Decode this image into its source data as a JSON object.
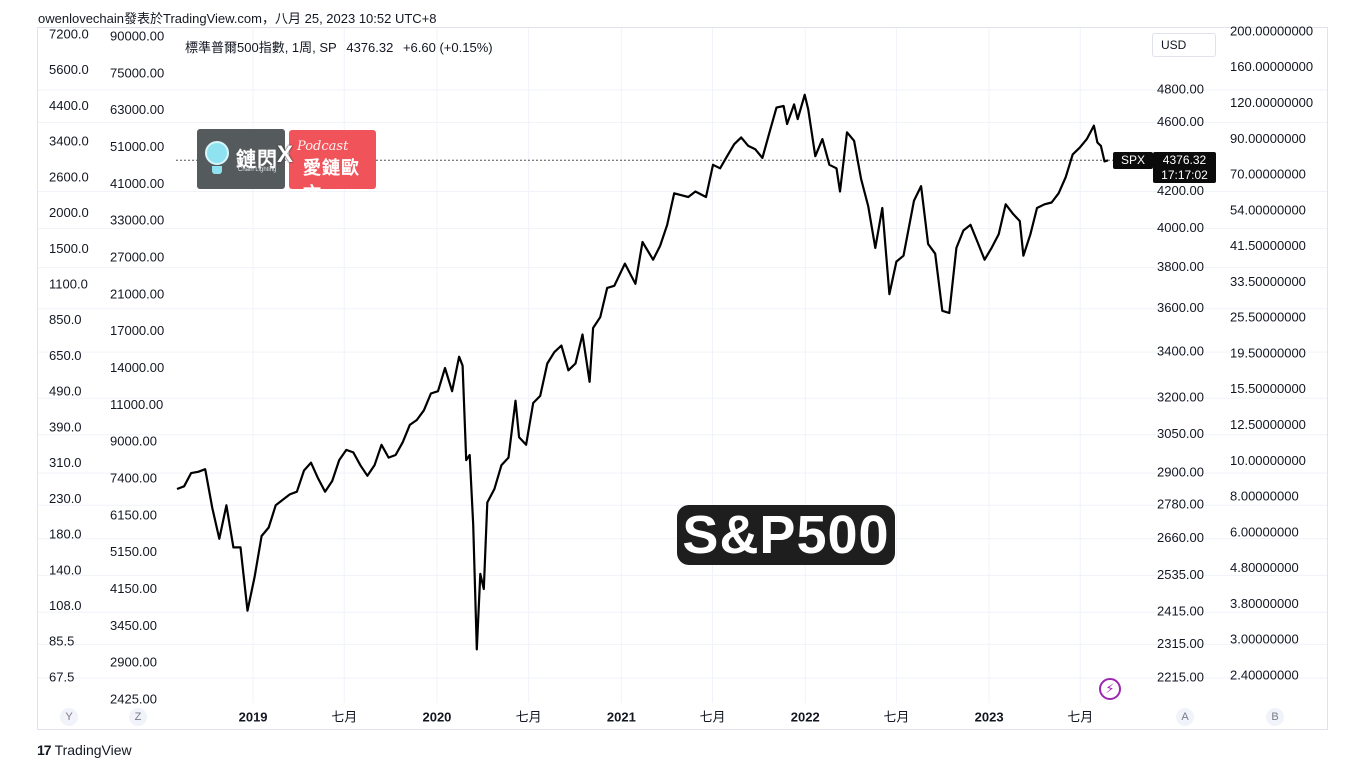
{
  "header": {
    "snapshot_info": "owenlovechain發表於TradingView.com，八月 25, 2023 10:52 UTC+8"
  },
  "legend": {
    "title": "標準普爾500指數, 1周, SP",
    "last": "4376.32",
    "change": "+6.60 (+0.15%)"
  },
  "currency_button": "USD",
  "price_tag": {
    "symbol": "SPX",
    "price": "4376.32",
    "countdown": "17:17:02"
  },
  "watermark": "S&P500",
  "logos": {
    "left_text": "鏈閃",
    "left_sub": "Chain Lighting",
    "x_mark": "X",
    "right_podcast": "Podcast",
    "right_name": "愛鏈歐文"
  },
  "axis_buttons": {
    "y": "Y",
    "z": "Z",
    "a": "A",
    "b": "B"
  },
  "footer_brand": "TradingView",
  "footer_logo": "17",
  "chart_data": {
    "type": "line",
    "title": "標準普爾500指數, 1周, SP",
    "xlabel": "",
    "ylabel": "",
    "log_scale": true,
    "x_tick_labels": [
      "2019",
      "七月",
      "2020",
      "七月",
      "2021",
      "七月",
      "2022",
      "七月",
      "2023",
      "七月"
    ],
    "y_range": [
      2180,
      5000
    ],
    "main_axis_ticks": [
      "4800.00",
      "4600.00",
      "4200.00",
      "4000.00",
      "3800.00",
      "3600.00",
      "3400.00",
      "3200.00",
      "3050.00",
      "2900.00",
      "2780.00",
      "2660.00",
      "2535.00",
      "2415.00",
      "2315.00",
      "2215.00"
    ],
    "left_axis_1_ticks": [
      "7200.0",
      "5600.0",
      "4400.0",
      "3400.0",
      "2600.0",
      "2000.0",
      "1500.0",
      "1100.0",
      "850.0",
      "650.0",
      "490.0",
      "390.0",
      "310.0",
      "230.0",
      "180.0",
      "140.0",
      "108.0",
      "85.5",
      "67.5"
    ],
    "left_axis_2_ticks": [
      "90000.00",
      "75000.00",
      "63000.00",
      "51000.00",
      "41000.00",
      "33000.00",
      "27000.00",
      "21000.00",
      "17000.00",
      "14000.00",
      "11000.00",
      "9000.00",
      "7400.00",
      "6150.00",
      "5150.00",
      "4150.00",
      "3450.00",
      "2900.00",
      "2425.00"
    ],
    "right_axis_2_ticks": [
      "200.00000000",
      "160.00000000",
      "120.00000000",
      "90.00000000",
      "70.00000000",
      "54.00000000",
      "41.50000000",
      "33.50000000",
      "25.50000000",
      "19.50000000",
      "15.50000000",
      "12.50000000",
      "10.00000000",
      "8.00000000",
      "6.00000000",
      "4.80000000",
      "3.80000000",
      "3.00000000",
      "2.40000000"
    ],
    "grid": true,
    "series": [
      {
        "values": [
          [
            "2018-08-03",
            2840
          ],
          [
            "2018-08-17",
            2850
          ],
          [
            "2018-08-31",
            2900
          ],
          [
            "2018-09-14",
            2905
          ],
          [
            "2018-09-28",
            2915
          ],
          [
            "2018-10-12",
            2770
          ],
          [
            "2018-10-26",
            2660
          ],
          [
            "2018-11-09",
            2780
          ],
          [
            "2018-11-23",
            2630
          ],
          [
            "2018-12-07",
            2630
          ],
          [
            "2018-12-21",
            2420
          ],
          [
            "2019-01-04",
            2530
          ],
          [
            "2019-01-18",
            2670
          ],
          [
            "2019-02-01",
            2700
          ],
          [
            "2019-02-15",
            2780
          ],
          [
            "2019-03-01",
            2800
          ],
          [
            "2019-03-15",
            2820
          ],
          [
            "2019-03-29",
            2830
          ],
          [
            "2019-04-12",
            2910
          ],
          [
            "2019-04-26",
            2940
          ],
          [
            "2019-05-10",
            2880
          ],
          [
            "2019-05-24",
            2830
          ],
          [
            "2019-06-07",
            2870
          ],
          [
            "2019-06-21",
            2950
          ],
          [
            "2019-07-05",
            2990
          ],
          [
            "2019-07-19",
            2980
          ],
          [
            "2019-08-02",
            2930
          ],
          [
            "2019-08-16",
            2890
          ],
          [
            "2019-08-30",
            2930
          ],
          [
            "2019-09-13",
            3010
          ],
          [
            "2019-09-27",
            2960
          ],
          [
            "2019-10-11",
            2970
          ],
          [
            "2019-10-25",
            3020
          ],
          [
            "2019-11-08",
            3090
          ],
          [
            "2019-11-22",
            3110
          ],
          [
            "2019-12-06",
            3150
          ],
          [
            "2019-12-20",
            3220
          ],
          [
            "2020-01-03",
            3230
          ],
          [
            "2020-01-17",
            3330
          ],
          [
            "2020-01-31",
            3230
          ],
          [
            "2020-02-14",
            3380
          ],
          [
            "2020-02-21",
            3340
          ],
          [
            "2020-02-28",
            2950
          ],
          [
            "2020-03-06",
            2970
          ],
          [
            "2020-03-13",
            2710
          ],
          [
            "2020-03-20",
            2300
          ],
          [
            "2020-03-27",
            2540
          ],
          [
            "2020-04-03",
            2490
          ],
          [
            "2020-04-10",
            2790
          ],
          [
            "2020-04-24",
            2840
          ],
          [
            "2020-05-08",
            2930
          ],
          [
            "2020-05-22",
            2960
          ],
          [
            "2020-06-05",
            3190
          ],
          [
            "2020-06-12",
            3040
          ],
          [
            "2020-06-26",
            3010
          ],
          [
            "2020-07-10",
            3180
          ],
          [
            "2020-07-24",
            3210
          ],
          [
            "2020-08-07",
            3350
          ],
          [
            "2020-08-21",
            3400
          ],
          [
            "2020-09-04",
            3430
          ],
          [
            "2020-09-18",
            3320
          ],
          [
            "2020-10-02",
            3350
          ],
          [
            "2020-10-16",
            3480
          ],
          [
            "2020-10-30",
            3270
          ],
          [
            "2020-11-06",
            3510
          ],
          [
            "2020-11-20",
            3560
          ],
          [
            "2020-12-04",
            3700
          ],
          [
            "2020-12-18",
            3710
          ],
          [
            "2021-01-08",
            3820
          ],
          [
            "2021-01-29",
            3720
          ],
          [
            "2021-02-12",
            3930
          ],
          [
            "2021-03-05",
            3840
          ],
          [
            "2021-03-19",
            3910
          ],
          [
            "2021-04-02",
            4020
          ],
          [
            "2021-04-16",
            4190
          ],
          [
            "2021-04-30",
            4180
          ],
          [
            "2021-05-14",
            4170
          ],
          [
            "2021-05-28",
            4200
          ],
          [
            "2021-06-18",
            4170
          ],
          [
            "2021-07-02",
            4350
          ],
          [
            "2021-07-16",
            4330
          ],
          [
            "2021-07-30",
            4400
          ],
          [
            "2021-08-13",
            4470
          ],
          [
            "2021-08-27",
            4510
          ],
          [
            "2021-09-10",
            4460
          ],
          [
            "2021-09-24",
            4440
          ],
          [
            "2021-10-08",
            4390
          ],
          [
            "2021-10-22",
            4540
          ],
          [
            "2021-11-05",
            4690
          ],
          [
            "2021-11-19",
            4700
          ],
          [
            "2021-11-26",
            4590
          ],
          [
            "2021-12-10",
            4710
          ],
          [
            "2021-12-17",
            4620
          ],
          [
            "2021-12-31",
            4770
          ],
          [
            "2022-01-07",
            4680
          ],
          [
            "2022-01-21",
            4400
          ],
          [
            "2022-02-04",
            4500
          ],
          [
            "2022-02-18",
            4350
          ],
          [
            "2022-03-04",
            4330
          ],
          [
            "2022-03-11",
            4200
          ],
          [
            "2022-03-25",
            4540
          ],
          [
            "2022-04-08",
            4490
          ],
          [
            "2022-04-22",
            4270
          ],
          [
            "2022-05-06",
            4120
          ],
          [
            "2022-05-20",
            3900
          ],
          [
            "2022-06-03",
            4110
          ],
          [
            "2022-06-17",
            3670
          ],
          [
            "2022-07-01",
            3830
          ],
          [
            "2022-07-15",
            3860
          ],
          [
            "2022-08-05",
            4150
          ],
          [
            "2022-08-19",
            4230
          ],
          [
            "2022-09-02",
            3920
          ],
          [
            "2022-09-16",
            3870
          ],
          [
            "2022-09-30",
            3590
          ],
          [
            "2022-10-14",
            3580
          ],
          [
            "2022-10-28",
            3900
          ],
          [
            "2022-11-11",
            3990
          ],
          [
            "2022-11-25",
            4020
          ],
          [
            "2022-12-09",
            3930
          ],
          [
            "2022-12-23",
            3840
          ],
          [
            "2023-01-06",
            3900
          ],
          [
            "2023-01-20",
            3970
          ],
          [
            "2023-02-03",
            4130
          ],
          [
            "2023-02-17",
            4080
          ],
          [
            "2023-03-03",
            4040
          ],
          [
            "2023-03-10",
            3860
          ],
          [
            "2023-03-24",
            3970
          ],
          [
            "2023-04-06",
            4110
          ],
          [
            "2023-04-21",
            4130
          ],
          [
            "2023-05-05",
            4140
          ],
          [
            "2023-05-19",
            4190
          ],
          [
            "2023-06-02",
            4280
          ],
          [
            "2023-06-16",
            4410
          ],
          [
            "2023-06-30",
            4450
          ],
          [
            "2023-07-14",
            4500
          ],
          [
            "2023-07-28",
            4580
          ],
          [
            "2023-08-04",
            4480
          ],
          [
            "2023-08-11",
            4460
          ],
          [
            "2023-08-18",
            4370
          ],
          [
            "2023-08-25",
            4376.32
          ]
        ]
      }
    ]
  },
  "colors": {
    "line": "#000000",
    "grid": "#f0f3fa",
    "axis_text": "#131722",
    "price_box": "#0b0b0b",
    "accent_bolt": "#9c27b0"
  }
}
